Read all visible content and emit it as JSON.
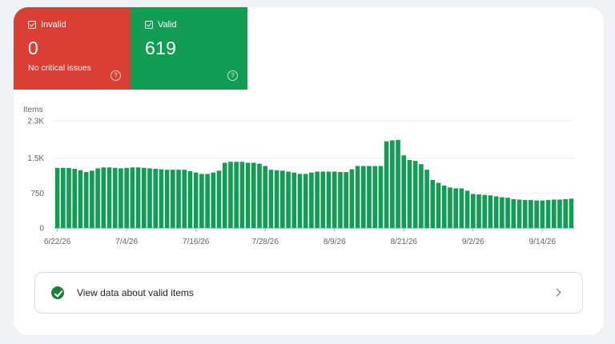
{
  "summary": {
    "invalid": {
      "label": "Invalid",
      "value": "0",
      "subtitle": "No critical issues",
      "color": "#d93f34"
    },
    "valid": {
      "label": "Valid",
      "value": "619",
      "color": "#119d54"
    }
  },
  "chart_data": {
    "type": "bar",
    "ylabel": "Items",
    "yticks": [
      "0",
      "750",
      "1.5K",
      "2.3K"
    ],
    "ylim": [
      0,
      2300
    ],
    "xticks": [
      {
        "label": "6/22/26",
        "index": 0
      },
      {
        "label": "7/4/26",
        "index": 12
      },
      {
        "label": "7/16/26",
        "index": 24
      },
      {
        "label": "7/28/26",
        "index": 36
      },
      {
        "label": "8/9/26",
        "index": 48
      },
      {
        "label": "8/21/26",
        "index": 60
      },
      {
        "label": "9/2/26",
        "index": 72
      },
      {
        "label": "9/14/26",
        "index": 84
      }
    ],
    "color": "#119d54",
    "values": [
      1290,
      1290,
      1290,
      1270,
      1240,
      1200,
      1230,
      1280,
      1300,
      1300,
      1290,
      1280,
      1290,
      1300,
      1300,
      1290,
      1280,
      1270,
      1260,
      1250,
      1250,
      1250,
      1250,
      1220,
      1190,
      1160,
      1160,
      1190,
      1230,
      1400,
      1420,
      1420,
      1420,
      1400,
      1400,
      1380,
      1330,
      1250,
      1240,
      1230,
      1210,
      1190,
      1160,
      1160,
      1190,
      1210,
      1210,
      1210,
      1210,
      1200,
      1200,
      1260,
      1330,
      1330,
      1330,
      1330,
      1330,
      1860,
      1880,
      1890,
      1560,
      1460,
      1440,
      1370,
      1250,
      1030,
      970,
      910,
      870,
      850,
      850,
      800,
      730,
      720,
      710,
      700,
      680,
      660,
      650,
      620,
      610,
      600,
      600,
      590,
      590,
      600,
      610,
      610,
      620,
      630
    ]
  },
  "footer": {
    "label": "View data about valid items"
  }
}
